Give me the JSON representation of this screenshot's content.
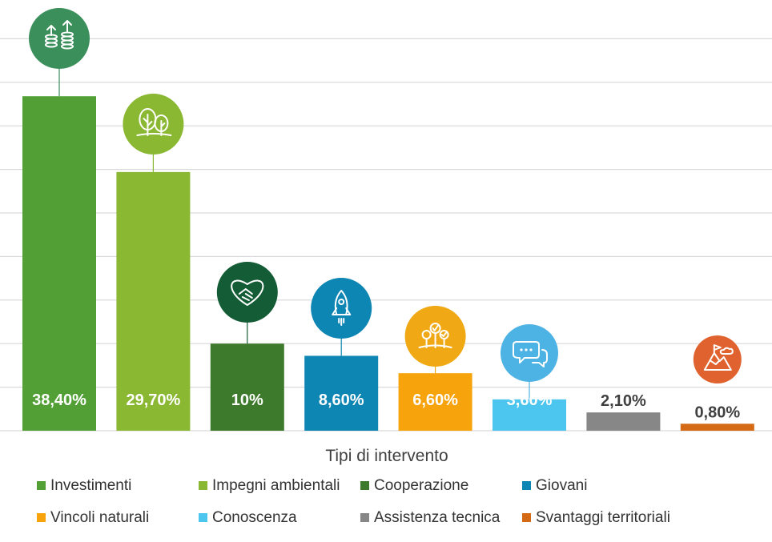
{
  "chart_data": {
    "type": "bar",
    "xlabel": "Tipi di intervento",
    "ylabel": "",
    "ylim": [
      0,
      45
    ],
    "grid": true,
    "legend_position": "bottom",
    "categories": [
      "Investimenti",
      "Impegni ambientali",
      "Cooperazione",
      "Giovani",
      "Vincoli naturali",
      "Conoscenza",
      "Assistenza tecnica",
      "Svantaggi territoriali"
    ],
    "values": [
      38.4,
      29.7,
      10,
      8.6,
      6.6,
      3.6,
      2.1,
      0.8
    ],
    "data_labels": [
      "38,40%",
      "29,70%",
      "10%",
      "8,60%",
      "6,60%",
      "3,60%",
      "2,10%",
      "0,80%"
    ],
    "colors": [
      "#52a035",
      "#8ab832",
      "#3e7a2c",
      "#0e86b3",
      "#f7a30b",
      "#4dc6ef",
      "#878787",
      "#d46a15"
    ],
    "icon_colors": [
      "#3a8f5a",
      "#8ab832",
      "#145c35",
      "#0e86b3",
      "#f0a914",
      "#4db2e4",
      "",
      "#e0622e"
    ],
    "icons": [
      "coins-growth-icon",
      "trees-icon",
      "handshake-heart-icon",
      "rocket-icon",
      "plants-check-icon",
      "chat-bubbles-icon",
      "",
      "mountain-flag-icon"
    ]
  }
}
